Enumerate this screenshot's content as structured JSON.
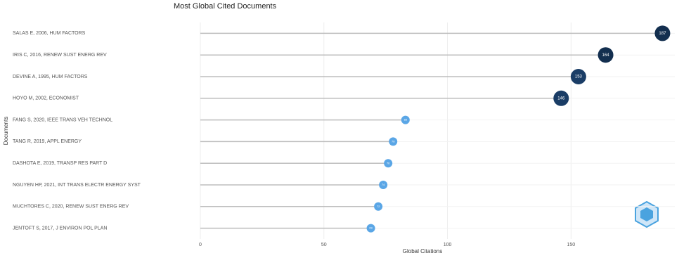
{
  "chart_data": {
    "type": "lollipop",
    "title": "Most Global Cited Documents",
    "x_label": "Global Citations",
    "y_label": "Documents",
    "categories": [
      "SALAS E, 2006, HUM FACTORS",
      "IRIS C, 2016, RENEW SUST ENERG REV",
      "DEVINE A, 1995, HUM FACTORS",
      "HOYO M, 2002, ECONOMIST",
      "FANG S, 2020, IEEE TRANS VEH TECHNOL",
      "TANG R, 2019, APPL ENERGY",
      "DASHOTA E, 2019, TRANSP RES PART D",
      "NGUYEN HP, 2021, INT TRANS ELECTR ENERGY SYST",
      "MUCHTORES C, 2020, RENEW SUST ENERG REV",
      "JENTOFT S, 2017, J ENVIRON POL PLAN"
    ],
    "values": [
      187,
      164,
      153,
      146,
      83,
      78,
      76,
      74,
      72,
      69
    ],
    "colors": [
      "#132f4f",
      "#132f4f",
      "#1a3d66",
      "#1a3d66",
      "#5aa6e6",
      "#5aa6e6",
      "#5aa6e6",
      "#5aa6e6",
      "#5aa6e6",
      "#5aa6e6"
    ],
    "stem_color": "#bdbdbd",
    "xlim": [
      0,
      192
    ],
    "xticks": [
      0,
      50,
      100,
      150
    ],
    "grid": true
  }
}
